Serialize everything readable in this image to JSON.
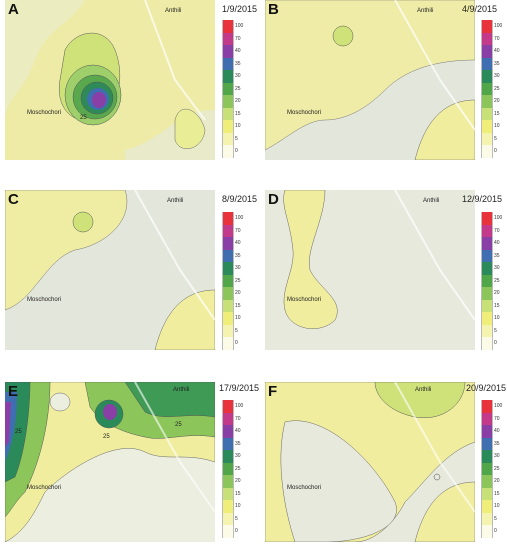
{
  "panels": [
    {
      "letter": "A",
      "date": "1/9/2015",
      "labels": [
        "Anthili",
        "Moschochori",
        "25"
      ]
    },
    {
      "letter": "B",
      "date": "4/9/2015",
      "labels": [
        "Anthili",
        "Moschochori"
      ]
    },
    {
      "letter": "C",
      "date": "8/9/2015",
      "labels": [
        "Anthili",
        "Moschochori"
      ]
    },
    {
      "letter": "D",
      "date": "12/9/2015",
      "labels": [
        "Anthili",
        "Moschochori"
      ]
    },
    {
      "letter": "E",
      "date": "17/9/2015",
      "labels": [
        "Anthili",
        "Moschochori",
        "25",
        "25",
        "25"
      ]
    },
    {
      "letter": "F",
      "date": "20/9/2015",
      "labels": [
        "Anthili",
        "Moschochori"
      ]
    }
  ],
  "legend": {
    "ticks": [
      "100",
      "70",
      "40",
      "35",
      "30",
      "25",
      "20",
      "15",
      "10",
      "5",
      "0"
    ],
    "colors": [
      "#e8323c",
      "#c43a8a",
      "#8a3fa6",
      "#3f6fb0",
      "#2a8a5a",
      "#52a64a",
      "#8cc65a",
      "#c8e078",
      "#f0ee7a",
      "#f5f3b0",
      "#fbfbe8"
    ]
  }
}
